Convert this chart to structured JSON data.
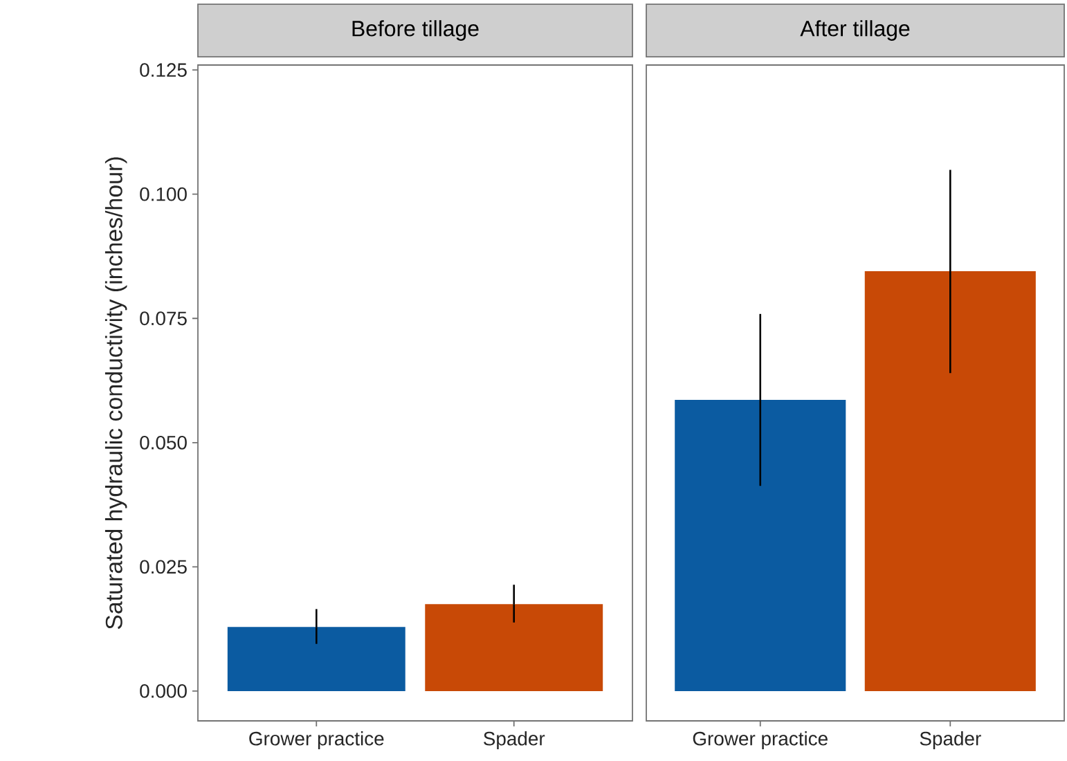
{
  "chart_data": [
    {
      "type": "bar",
      "title": "Before tillage",
      "ylabel": "Saturated hydraulic conductivity (inches/hour)",
      "categories": [
        "Grower practice",
        "Spader"
      ],
      "values": [
        0.0129,
        0.0175
      ],
      "colors": [
        "#0b5ba1",
        "#c84906"
      ],
      "errors": [
        [
          0.0095,
          0.0165
        ],
        [
          0.0138,
          0.0214
        ]
      ],
      "ylim": [
        -0.006,
        0.126
      ],
      "yticks": [
        {
          "value": 0,
          "label": "0.000"
        },
        0.025,
        {
          "value": 0.05,
          "label": "0.050"
        },
        0.075,
        {
          "value": 0.1,
          "label": "0.100"
        },
        0.125
      ]
    },
    {
      "type": "bar",
      "title": "After tillage",
      "categories": [
        "Grower practice",
        "Spader"
      ],
      "values": [
        0.0586,
        0.0845
      ],
      "colors": [
        "#0b5ba1",
        "#c84906"
      ],
      "errors": [
        [
          0.0413,
          0.0759
        ],
        [
          0.064,
          0.1049
        ]
      ],
      "ylim": [
        -0.006,
        0.126
      ],
      "tick_labels": "x"
    }
  ]
}
